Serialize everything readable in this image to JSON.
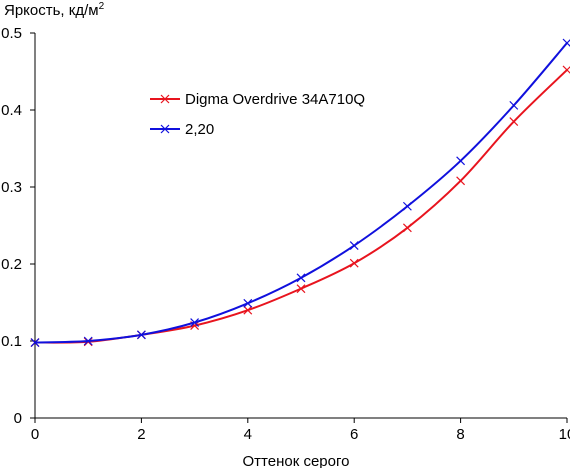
{
  "chart_data": {
    "type": "line",
    "title": "",
    "ylabel": "Яркость, кд/м",
    "ylabel_sup": "2",
    "xlabel": "Оттенок серого",
    "xlim": [
      0,
      10
    ],
    "ylim": [
      0,
      0.5
    ],
    "x_ticks": [
      0,
      2,
      4,
      6,
      8,
      10
    ],
    "y_ticks": [
      "0",
      "0.1",
      "0.2",
      "0.3",
      "0.4",
      "0.5"
    ],
    "grid": false,
    "legend_position": "upper-left inside plot",
    "x": [
      0,
      1,
      2,
      3,
      4,
      5,
      6,
      7,
      8,
      9,
      10
    ],
    "series": [
      {
        "name": "Digma Overdrive 34A710Q",
        "color": "#e8141e",
        "marker": "x",
        "values": [
          0.098,
          0.099,
          0.108,
          0.12,
          0.14,
          0.168,
          0.201,
          0.247,
          0.308,
          0.385,
          0.452
        ]
      },
      {
        "name": "2,20",
        "color": "#1010dd",
        "marker": "x",
        "values": [
          0.098,
          0.1,
          0.108,
          0.124,
          0.149,
          0.182,
          0.224,
          0.275,
          0.334,
          0.406,
          0.487
        ]
      }
    ]
  }
}
